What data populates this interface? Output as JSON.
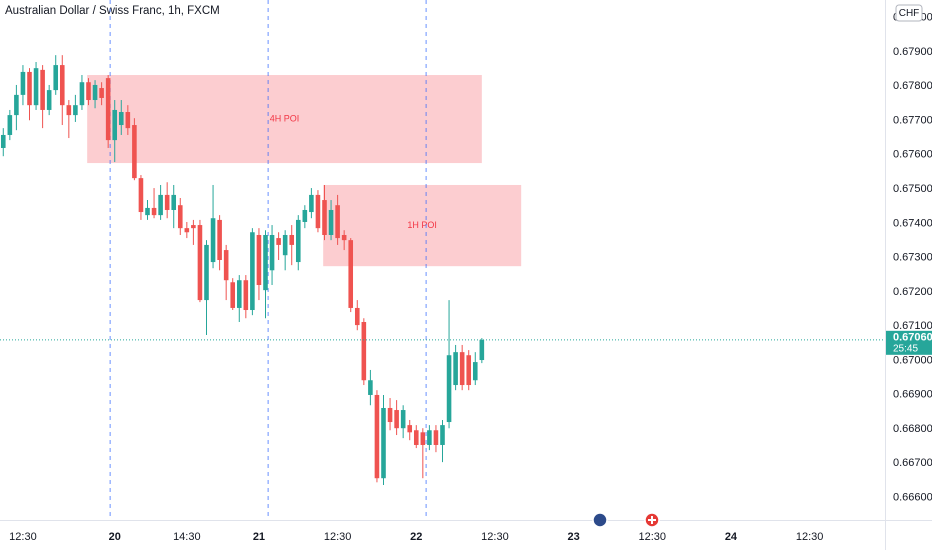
{
  "chart_data": {
    "type": "candlestick",
    "title": "Australian Dollar / Swiss Franc, 1h, FXCM",
    "currency": "CHF",
    "up_color": "#26a69a",
    "down_color": "#ef5350",
    "open": [
      0.6762,
      0.67658,
      0.67716,
      0.67775,
      0.67842,
      0.67745,
      0.67848,
      0.67731,
      0.67789,
      0.67862,
      0.67745,
      0.67716,
      0.67745,
      0.67812,
      0.6776,
      0.67795,
      0.67824,
      0.67643,
      0.67687,
      0.67725,
      0.67687,
      0.67532,
      0.67424,
      0.67445,
      0.67424,
      0.67483,
      0.67439,
      0.67453,
      0.67386,
      0.67395,
      0.67395,
      0.67176,
      0.67287,
      0.6741,
      0.67322,
      0.67228,
      0.67153,
      0.67234,
      0.67147,
      0.67366,
      0.67205,
      0.67263,
      0.67357,
      0.67307,
      0.67366,
      0.67287,
      0.67404,
      0.67433,
      0.67483,
      0.67468,
      0.67366,
      0.67453,
      0.67366,
      0.67351,
      0.67153,
      0.67112,
      0.66899,
      0.66899,
      0.66656,
      0.66861,
      0.66855,
      0.66802,
      0.66811,
      0.66796,
      0.6679,
      0.66753,
      0.66796,
      0.66753,
      0.6682,
      0.66928,
      0.67024,
      0.67015,
      0.66942,
      0.67001
    ],
    "high": [
      0.67678,
      0.67731,
      0.67804,
      0.67862,
      0.67853,
      0.67871,
      0.67862,
      0.67804,
      0.67891,
      0.67891,
      0.6776,
      0.67775,
      0.67833,
      0.67824,
      0.67818,
      0.67812,
      0.67833,
      0.6776,
      0.6776,
      0.67745,
      0.67707,
      0.67541,
      0.67468,
      0.67503,
      0.67512,
      0.6752,
      0.67512,
      0.67474,
      0.67404,
      0.6741,
      0.6741,
      0.67351,
      0.67512,
      0.67424,
      0.67337,
      0.6724,
      0.67249,
      0.67249,
      0.67386,
      0.67386,
      0.6738,
      0.67395,
      0.67374,
      0.6738,
      0.67395,
      0.67424,
      0.67453,
      0.67503,
      0.67497,
      0.67512,
      0.67468,
      0.67483,
      0.6738,
      0.67357,
      0.67176,
      0.67123,
      0.66972,
      0.66913,
      0.66899,
      0.6689,
      0.66884,
      0.66869,
      0.66826,
      0.66811,
      0.66802,
      0.66811,
      0.66811,
      0.66826,
      0.67176,
      0.67045,
      0.67045,
      0.6703,
      0.67024,
      0.67065
    ],
    "low": [
      0.67596,
      0.67643,
      0.67672,
      0.67745,
      0.67701,
      0.67731,
      0.67678,
      0.67716,
      0.67775,
      0.67687,
      0.67649,
      0.67696,
      0.67731,
      0.67745,
      0.67736,
      0.67745,
      0.6762,
      0.67579,
      0.67658,
      0.67658,
      0.67526,
      0.6741,
      0.6741,
      0.67415,
      0.6741,
      0.67415,
      0.67386,
      0.67366,
      0.67357,
      0.67337,
      0.6717,
      0.67074,
      0.67269,
      0.67263,
      0.67176,
      0.67147,
      0.67112,
      0.67123,
      0.67132,
      0.67176,
      0.67123,
      0.6722,
      0.67293,
      0.67263,
      0.67278,
      0.67263,
      0.67386,
      0.67415,
      0.67374,
      0.67351,
      0.67351,
      0.67337,
      0.67322,
      0.67141,
      0.67088,
      0.66928,
      0.66869,
      0.66644,
      0.66636,
      0.66796,
      0.66782,
      0.66773,
      0.66767,
      0.66744,
      0.66656,
      0.66738,
      0.66732,
      0.66703,
      0.66802,
      0.66913,
      0.66913,
      0.66913,
      0.66928,
      0.66992
    ],
    "close": [
      0.67658,
      0.67716,
      0.67775,
      0.67842,
      0.67745,
      0.67853,
      0.67731,
      0.67789,
      0.67862,
      0.67745,
      0.67716,
      0.67745,
      0.67812,
      0.6776,
      0.67804,
      0.67766,
      0.67643,
      0.67731,
      0.67725,
      0.67678,
      0.67532,
      0.67433,
      0.67445,
      0.67424,
      0.67483,
      0.67439,
      0.67483,
      0.67386,
      0.67374,
      0.67386,
      0.67176,
      0.67337,
      0.67415,
      0.67293,
      0.67234,
      0.67153,
      0.67234,
      0.67147,
      0.67374,
      0.6722,
      0.67366,
      0.67366,
      0.67337,
      0.67366,
      0.67337,
      0.6741,
      0.67439,
      0.67483,
      0.67386,
      0.67366,
      0.67439,
      0.67357,
      0.67351,
      0.67153,
      0.67103,
      0.66942,
      0.66942,
      0.66656,
      0.66861,
      0.6682,
      0.66802,
      0.66855,
      0.6679,
      0.66753,
      0.66753,
      0.66796,
      0.66753,
      0.66811,
      0.67015,
      0.67024,
      0.66928,
      0.66928,
      0.66995,
      0.6706
    ],
    "xlim": [
      -0.5,
      134.5
    ],
    "xticks": [
      {
        "value": 3,
        "label": "12:30"
      },
      {
        "value": 17,
        "label": "20"
      },
      {
        "value": 28,
        "label": "14:30"
      },
      {
        "value": 39,
        "label": "21"
      },
      {
        "value": 51,
        "label": "12:30"
      },
      {
        "value": 63,
        "label": "22"
      },
      {
        "value": 75,
        "label": "12:30"
      },
      {
        "value": 87,
        "label": "23"
      },
      {
        "value": 99,
        "label": "12:30"
      },
      {
        "value": 111,
        "label": "24"
      },
      {
        "value": 123,
        "label": "12:30"
      }
    ],
    "ylim": [
      0.66534,
      0.68052
    ],
    "yticks": [
      {
        "value": 0.666,
        "label": "0.66600"
      },
      {
        "value": 0.667,
        "label": "0.66700"
      },
      {
        "value": 0.668,
        "label": "0.66800"
      },
      {
        "value": 0.669,
        "label": "0.66900"
      },
      {
        "value": 0.67,
        "label": "0.67000"
      },
      {
        "value": 0.671,
        "label": "0.67100"
      },
      {
        "value": 0.672,
        "label": "0.67200"
      },
      {
        "value": 0.673,
        "label": "0.67300"
      },
      {
        "value": 0.674,
        "label": "0.67400"
      },
      {
        "value": 0.675,
        "label": "0.67500"
      },
      {
        "value": 0.676,
        "label": "0.67600"
      },
      {
        "value": 0.677,
        "label": "0.67700"
      },
      {
        "value": 0.678,
        "label": "0.67800"
      },
      {
        "value": 0.679,
        "label": "0.67900"
      },
      {
        "value": 0.68,
        "label": "0.68000"
      }
    ],
    "session_lines": [
      16.3,
      40.4,
      64.5
    ],
    "zones": [
      {
        "label": "4H POI",
        "y": [
          0.67833,
          0.67576
        ],
        "slots": [
          12.8,
          73
        ]
      },
      {
        "label": "1H POI",
        "y": [
          0.67512,
          0.67275
        ],
        "slots": [
          48.8,
          79
        ]
      }
    ],
    "last_price": {
      "value": 0.6706,
      "label": "0.67060"
    },
    "countdown": "25:45"
  }
}
